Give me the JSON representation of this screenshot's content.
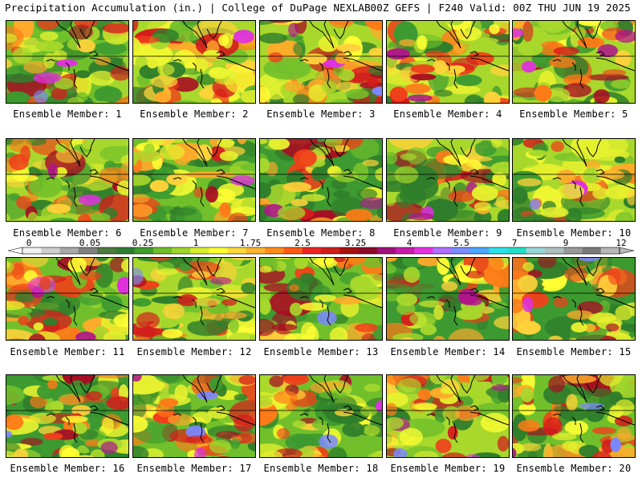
{
  "header": {
    "left_title": "Precipitation Accumulation (in.) | College of DuPage NEXLAB",
    "right_title": "00Z GEFS | F240 Valid: 00Z THU JUN 19 2025"
  },
  "members": [
    "Ensemble Member: 1",
    "Ensemble Member: 2",
    "Ensemble Member: 3",
    "Ensemble Member: 4",
    "Ensemble Member: 5",
    "Ensemble Member: 6",
    "Ensemble Member: 7",
    "Ensemble Member: 8",
    "Ensemble Member: 9",
    "Ensemble Member: 10",
    "Ensemble Member: 11",
    "Ensemble Member: 12",
    "Ensemble Member: 13",
    "Ensemble Member: 14",
    "Ensemble Member: 15",
    "Ensemble Member: 16",
    "Ensemble Member: 17",
    "Ensemble Member: 18",
    "Ensemble Member: 19",
    "Ensemble Member: 20"
  ],
  "colorbar": {
    "tick_labels": [
      "0",
      "0.05",
      "0.25",
      "1",
      "1.75",
      "2.5",
      "3.25",
      "4",
      "5.5",
      "7",
      "9",
      "12"
    ],
    "colors": [
      "#f2f2f2",
      "#cfcfcf",
      "#a8a8a8",
      "#808080",
      "#4f7a3f",
      "#2e7d32",
      "#3f9c2f",
      "#6fbe2a",
      "#9fd62a",
      "#d9ee2e",
      "#ffff33",
      "#ffd83a",
      "#ffb52e",
      "#ff8c1a",
      "#ff5a14",
      "#ee2222",
      "#d01c1c",
      "#a81010",
      "#8c0a2a",
      "#a0127a",
      "#c81aaa",
      "#e830e0",
      "#b070ff",
      "#7a8cff",
      "#4aa8ff",
      "#2ae0e8",
      "#20e0c8",
      "#9ad8d8",
      "#b0c0c0",
      "#9a9a9a",
      "#7a7a7a",
      "#b8b8b8"
    ]
  }
}
